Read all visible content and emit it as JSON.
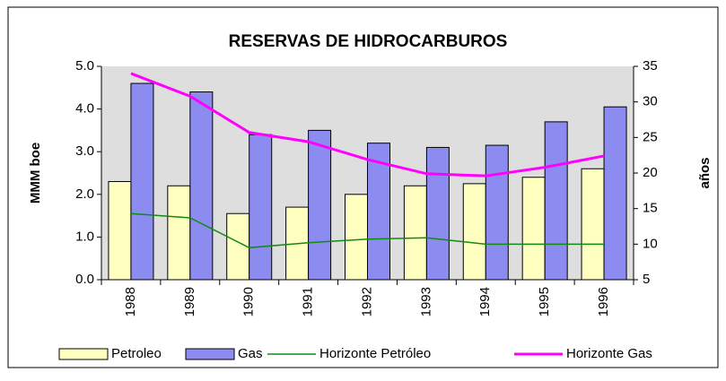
{
  "chart_data": {
    "type": "bar_line",
    "title": "RESERVAS DE HIDROCARBUROS",
    "y_label": "MMM boe",
    "y2_label": "años",
    "categories": [
      "1988",
      "1989",
      "1990",
      "1991",
      "1992",
      "1993",
      "1994",
      "1995",
      "1996"
    ],
    "series": [
      {
        "name": "Petroleo",
        "type": "bar",
        "color": "#ffffc0",
        "values": [
          2.3,
          2.2,
          1.55,
          1.7,
          2.0,
          2.2,
          2.25,
          2.4,
          2.6
        ]
      },
      {
        "name": "Gas",
        "type": "bar",
        "color": "#8c8cf0",
        "values": [
          4.6,
          4.4,
          3.4,
          3.5,
          3.2,
          3.1,
          3.15,
          3.7,
          4.05
        ]
      },
      {
        "name": "Horizonte Petróleo",
        "type": "line",
        "axis": "y2",
        "color": "#138a13",
        "values": [
          14.3,
          13.7,
          9.5,
          10.2,
          10.7,
          10.9,
          10.0,
          10.0,
          10.0
        ]
      },
      {
        "name": "Horizonte Gas",
        "type": "line",
        "axis": "y2",
        "color": "#ff00ff",
        "values": [
          34,
          30.8,
          25.7,
          24.4,
          21.9,
          19.9,
          19.6,
          20.8,
          22.4
        ]
      }
    ],
    "ylim": [
      0,
      5
    ],
    "yticks": [
      {
        "value": 0,
        "label": "0.0"
      },
      {
        "value": 1,
        "label": "1.0"
      },
      {
        "value": 2,
        "label": "2.0"
      },
      {
        "value": 3,
        "label": "3.0"
      },
      {
        "value": 4,
        "label": "4.0"
      },
      {
        "value": 5,
        "label": "5.0"
      }
    ],
    "y2lim": [
      5,
      35
    ],
    "y2ticks": [
      5,
      10,
      15,
      20,
      25,
      30,
      35
    ],
    "legend": "bottom"
  }
}
